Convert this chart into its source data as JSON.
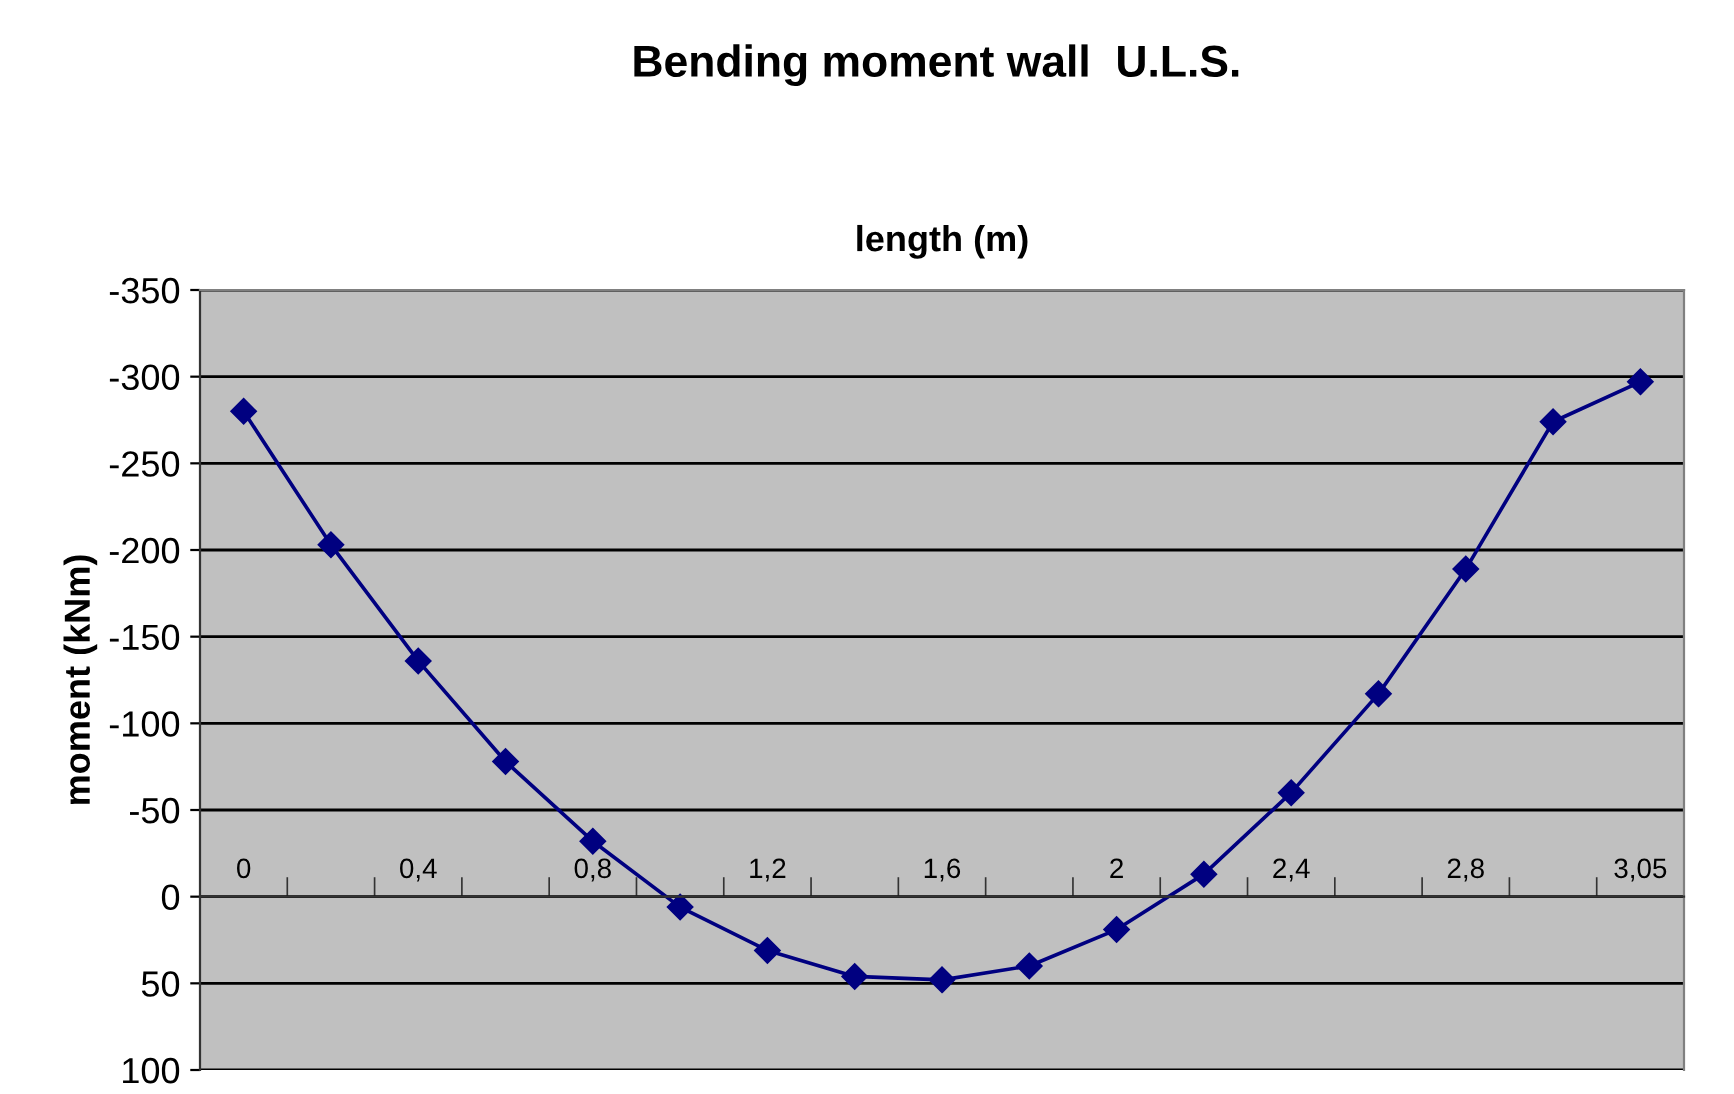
{
  "chart_data": {
    "type": "line",
    "title": "Bending moment wall  U.L.S.",
    "xlabel": "length (m)",
    "ylabel": "moment (kNm)",
    "categories": [
      "0",
      null,
      "0,4",
      null,
      "0,8",
      null,
      "1,2",
      null,
      "1,6",
      null,
      "2",
      null,
      "2,4",
      null,
      "2,8",
      null,
      "3,05"
    ],
    "series": [
      {
        "color": "#000080",
        "values": [
          -280,
          -203,
          -136,
          -78,
          -32,
          6,
          31,
          46,
          48,
          40,
          19,
          -13,
          -60,
          -117,
          -189,
          -274,
          -297
        ]
      }
    ],
    "ylim": [
      100,
      -350
    ],
    "yticks": [
      -350,
      -300,
      -250,
      -200,
      -150,
      -100,
      -50,
      0,
      50,
      100
    ],
    "grid": "y",
    "marker": "diamond",
    "line_style": "solid"
  }
}
